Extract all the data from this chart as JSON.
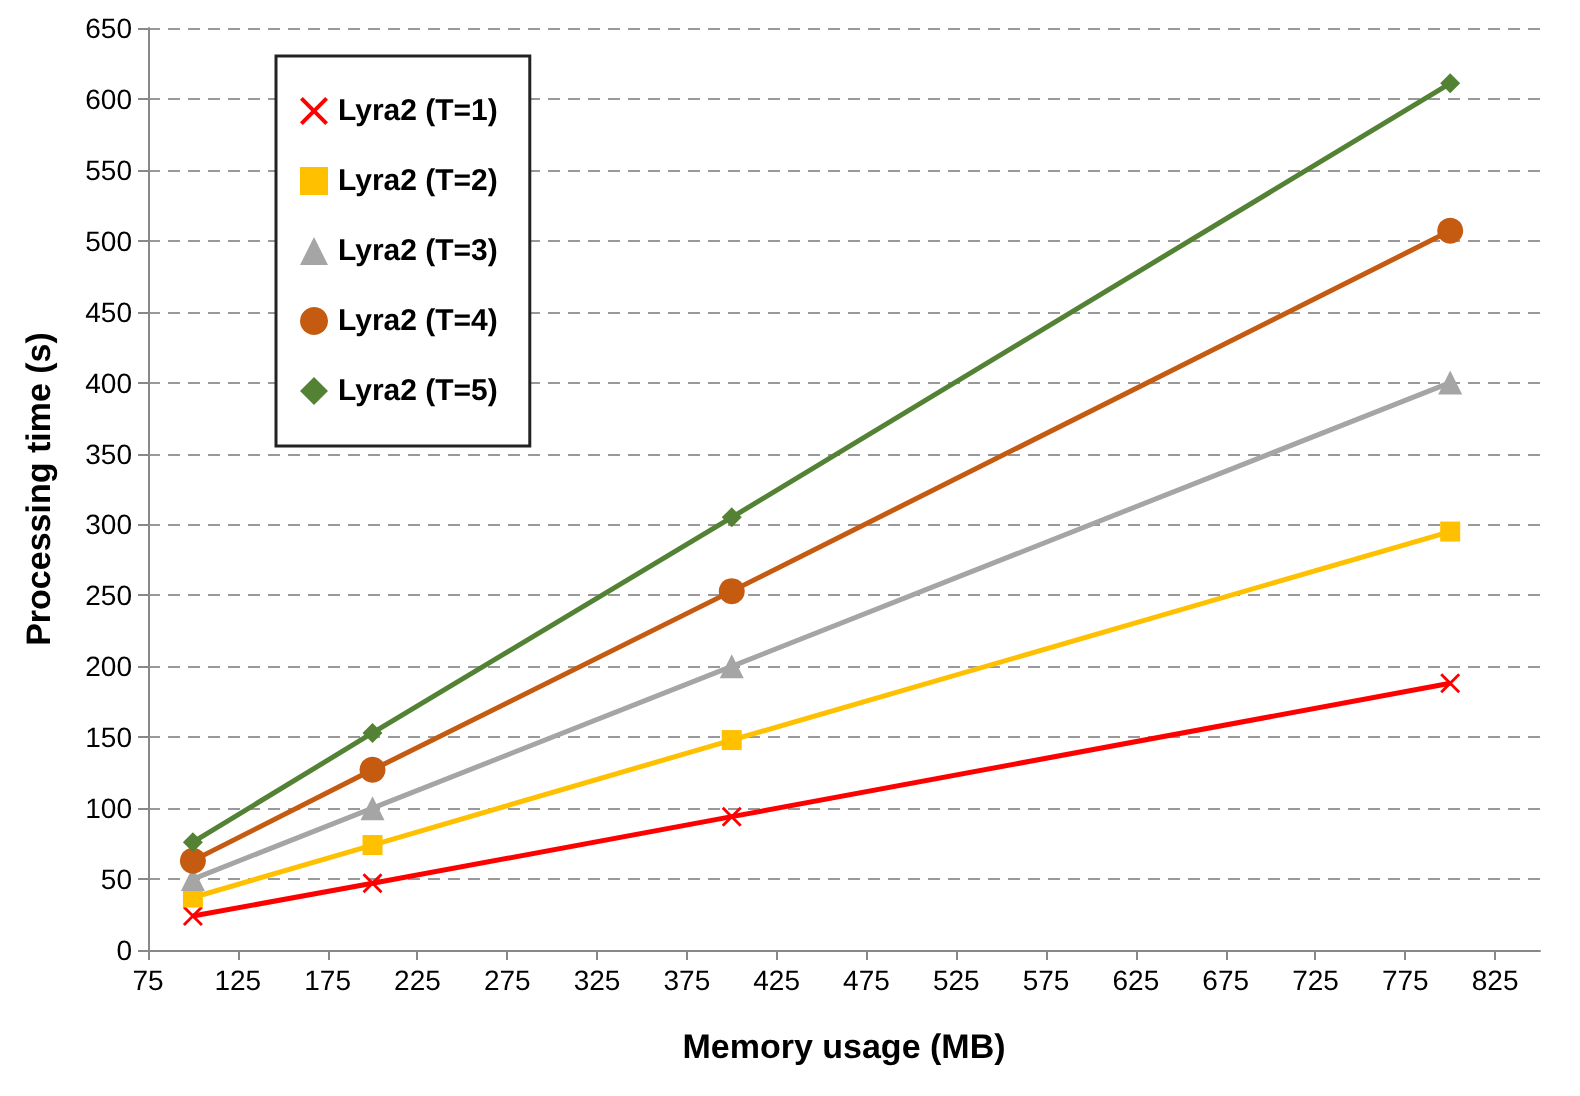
{
  "chart_data": {
    "type": "line",
    "xlabel": "Memory usage (MB)",
    "ylabel": "Processing time (s)",
    "x": [
      100,
      200,
      400,
      800
    ],
    "series": [
      {
        "name": "Lyra2 (T=1)",
        "color": "#ff0000",
        "marker": "cross",
        "values": [
          24,
          47,
          94,
          188
        ]
      },
      {
        "name": "Lyra2 (T=2)",
        "color": "#ffc000",
        "marker": "square",
        "values": [
          37,
          74,
          148,
          295
        ]
      },
      {
        "name": "Lyra2 (T=3)",
        "color": "#a5a5a5",
        "marker": "triangle",
        "values": [
          50,
          100,
          200,
          400
        ]
      },
      {
        "name": "Lyra2 (T=4)",
        "color": "#c55a11",
        "marker": "circle",
        "values": [
          63,
          127,
          253,
          507
        ]
      },
      {
        "name": "Lyra2 (T=5)",
        "color": "#548235",
        "marker": "diamond",
        "values": [
          76,
          153,
          305,
          611
        ]
      }
    ],
    "xlim": [
      75,
      850
    ],
    "xticks": [
      75,
      125,
      175,
      225,
      275,
      325,
      375,
      425,
      475,
      525,
      575,
      625,
      675,
      725,
      775,
      825
    ],
    "ylim": [
      0,
      650
    ],
    "yticks": [
      0,
      50,
      100,
      150,
      200,
      250,
      300,
      350,
      400,
      450,
      500,
      550,
      600,
      650
    ],
    "grid": "y",
    "legend": "top left",
    "line_style": "solid"
  }
}
